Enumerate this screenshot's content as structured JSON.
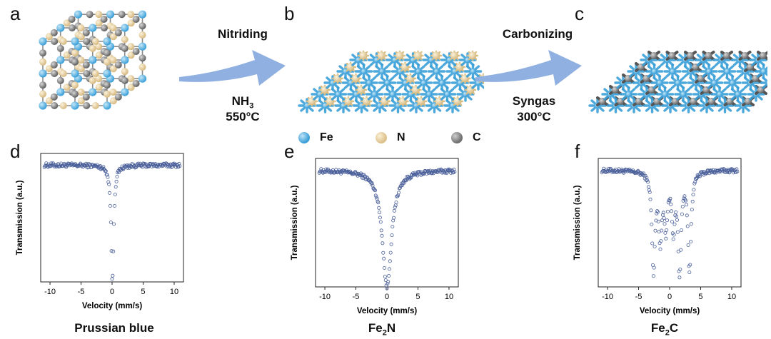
{
  "panel_letters": [
    "a",
    "b",
    "c",
    "d",
    "e",
    "f"
  ],
  "steps": {
    "step1": {
      "name": "Nitriding",
      "gas_main": "NH",
      "gas_sub": "3",
      "temp": "550°C"
    },
    "step2": {
      "name": "Carbonizing",
      "gas": "Syngas",
      "temp": "300°C"
    }
  },
  "legend": [
    {
      "label": "Fe",
      "color": "#3a9fd8"
    },
    {
      "label": "N",
      "color": "#e3c98f"
    },
    {
      "label": "C",
      "color": "#7f7f7f"
    }
  ],
  "captions": [
    {
      "main": "Prussian blue",
      "sub": "",
      "tail": ""
    },
    {
      "main": "Fe",
      "sub": "2",
      "tail": "N"
    },
    {
      "main": "Fe",
      "sub": "2",
      "tail": "C"
    }
  ],
  "colors": {
    "fe": "#3a9fd8",
    "n": "#e3c98f",
    "c": "#7f7f7f",
    "arrow": "#8fb0e0",
    "marker": "#4a5f9a"
  },
  "chart_data": [
    {
      "type": "scatter",
      "panel": "d",
      "xlabel": "Velocity (mm/s)",
      "ylabel": "Transmission (a.u.)",
      "xlim": [
        -11.5,
        11.5
      ],
      "xticks": [
        -10,
        -5,
        0,
        5,
        10
      ],
      "ylim": [
        0.0,
        1.1
      ],
      "yticks_shown": false,
      "spectrum": {
        "baseline": 1.0,
        "dips": [
          {
            "center": 0.05,
            "depth": 1.0,
            "width": 0.25
          }
        ]
      }
    },
    {
      "type": "scatter",
      "panel": "e",
      "xlabel": "Velocity (mm/s)",
      "ylabel": "Transmission (a.u.)",
      "xlim": [
        -11.5,
        11.5
      ],
      "xticks": [
        -10,
        -5,
        0,
        5,
        10
      ],
      "ylim": [
        0.0,
        1.1
      ],
      "yticks_shown": false,
      "spectrum": {
        "baseline": 1.0,
        "dips": [
          {
            "center": 0.0,
            "depth": 1.0,
            "width": 0.9
          }
        ]
      }
    },
    {
      "type": "scatter",
      "panel": "f",
      "xlabel": "Velocity (mm/s)",
      "ylabel": "Transmission (a.u.)",
      "xlim": [
        -11.5,
        11.5
      ],
      "xticks": [
        -10,
        -5,
        0,
        5,
        10
      ],
      "ylim": [
        0.0,
        1.1
      ],
      "yticks_shown": false,
      "spectrum": {
        "baseline": 1.0,
        "dips": [
          {
            "center": -2.6,
            "depth": 0.85,
            "width": 0.3
          },
          {
            "center": -1.5,
            "depth": 0.55,
            "width": 0.3
          },
          {
            "center": -0.6,
            "depth": 0.45,
            "width": 0.3
          },
          {
            "center": 0.6,
            "depth": 0.45,
            "width": 0.3
          },
          {
            "center": 1.6,
            "depth": 0.85,
            "width": 0.3
          },
          {
            "center": 3.2,
            "depth": 0.85,
            "width": 0.3
          }
        ]
      }
    }
  ]
}
